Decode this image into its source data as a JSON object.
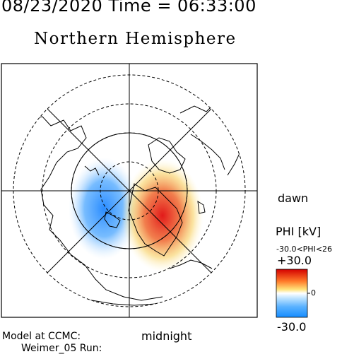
{
  "header": {
    "datetime": "08/23/2020 Time = 06:33:00",
    "title": "Northern Hemisphere"
  },
  "map": {
    "dawn_label": "dawn",
    "midnight_label": "midnight",
    "pattern_min_color": "#2f8fff",
    "pattern_max_color": "#e41a1c"
  },
  "colorbar": {
    "title": "PHI [kV]",
    "range_text": "-30.0<PHI<26",
    "max_label": "+30.0",
    "mid_label": "0",
    "min_label": "-30.0",
    "colors": [
      "#1e8fff",
      "#ffffff",
      "#e00000"
    ]
  },
  "footer": {
    "model_line1": "Model at CCMC:",
    "model_line2": "Weimer_05 Run:"
  }
}
